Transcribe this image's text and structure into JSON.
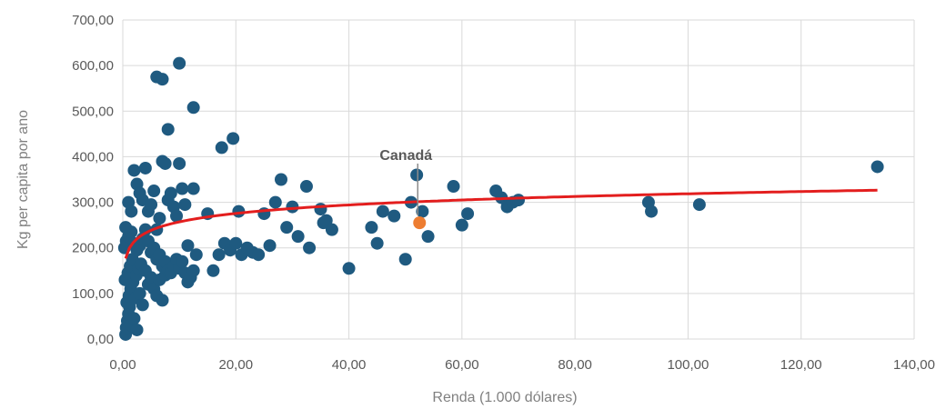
{
  "chart_data": {
    "type": "scatter",
    "title": "",
    "xlabel": "Renda (1.000 dólares)",
    "ylabel": "Kg per capita por ano",
    "xlim": [
      0,
      140
    ],
    "ylim": [
      0,
      700
    ],
    "grid": true,
    "legend": "none",
    "x_ticks": [
      "0,00",
      "20,00",
      "40,00",
      "60,00",
      "80,00",
      "100,00",
      "120,00",
      "140,00"
    ],
    "y_ticks": [
      "0,00",
      "100,00",
      "200,00",
      "300,00",
      "400,00",
      "500,00",
      "600,00",
      "700,00"
    ],
    "colors": {
      "points": "#1f5a80",
      "highlight": "#ed7d31",
      "trend": "#e31e1e",
      "annotation": "#595959"
    },
    "series": [
      {
        "points": [
          [
            0.5,
            10
          ],
          [
            0.6,
            25
          ],
          [
            0.8,
            40
          ],
          [
            1.0,
            55
          ],
          [
            1.2,
            70
          ],
          [
            1.5,
            30
          ],
          [
            2.0,
            45
          ],
          [
            2.5,
            20
          ],
          [
            0.7,
            80
          ],
          [
            1.1,
            95
          ],
          [
            1.4,
            110
          ],
          [
            1.8,
            125
          ],
          [
            2.2,
            90
          ],
          [
            3.0,
            100
          ],
          [
            3.5,
            75
          ],
          [
            0.4,
            130
          ],
          [
            0.9,
            145
          ],
          [
            1.3,
            160
          ],
          [
            1.7,
            175
          ],
          [
            2.4,
            140
          ],
          [
            2.8,
            155
          ],
          [
            3.2,
            165
          ],
          [
            4.0,
            150
          ],
          [
            4.5,
            120
          ],
          [
            5.0,
            135
          ],
          [
            5.5,
            110
          ],
          [
            6.0,
            95
          ],
          [
            6.5,
            130
          ],
          [
            7.0,
            85
          ],
          [
            7.5,
            140
          ],
          [
            0.3,
            200
          ],
          [
            0.6,
            215
          ],
          [
            1.0,
            225
          ],
          [
            1.5,
            235
          ],
          [
            2.0,
            210
          ],
          [
            2.5,
            195
          ],
          [
            3.0,
            205
          ],
          [
            3.5,
            220
          ],
          [
            4.0,
            240
          ],
          [
            4.5,
            215
          ],
          [
            5.0,
            190
          ],
          [
            5.5,
            200
          ],
          [
            6.0,
            175
          ],
          [
            6.5,
            185
          ],
          [
            7.0,
            160
          ],
          [
            7.5,
            170
          ],
          [
            8.0,
            150
          ],
          [
            8.5,
            145
          ],
          [
            9.0,
            160
          ],
          [
            9.5,
            175
          ],
          [
            10.0,
            155
          ],
          [
            10.5,
            170
          ],
          [
            11.0,
            145
          ],
          [
            11.5,
            125
          ],
          [
            12.0,
            135
          ],
          [
            12.5,
            150
          ],
          [
            13.0,
            185
          ],
          [
            0.5,
            245
          ],
          [
            1.0,
            300
          ],
          [
            1.5,
            280
          ],
          [
            2.0,
            370
          ],
          [
            2.5,
            340
          ],
          [
            3.0,
            320
          ],
          [
            3.5,
            305
          ],
          [
            4.0,
            375
          ],
          [
            4.5,
            280
          ],
          [
            5.0,
            295
          ],
          [
            5.5,
            325
          ],
          [
            6.0,
            240
          ],
          [
            6.5,
            265
          ],
          [
            7.0,
            390
          ],
          [
            7.5,
            385
          ],
          [
            8.0,
            305
          ],
          [
            8.5,
            320
          ],
          [
            9.0,
            290
          ],
          [
            9.5,
            270
          ],
          [
            10.0,
            385
          ],
          [
            10.5,
            330
          ],
          [
            11.0,
            295
          ],
          [
            11.5,
            205
          ],
          [
            12.5,
            330
          ],
          [
            6.0,
            575
          ],
          [
            7.0,
            570
          ],
          [
            8.0,
            460
          ],
          [
            10.0,
            605
          ],
          [
            12.5,
            508
          ],
          [
            17.5,
            420
          ],
          [
            19.5,
            440
          ],
          [
            15.0,
            275
          ],
          [
            16.0,
            150
          ],
          [
            17.0,
            185
          ],
          [
            18.0,
            210
          ],
          [
            19.0,
            195
          ],
          [
            20.0,
            210
          ],
          [
            20.5,
            280
          ],
          [
            21.0,
            185
          ],
          [
            22.0,
            200
          ],
          [
            23.0,
            190
          ],
          [
            24.0,
            185
          ],
          [
            25.0,
            275
          ],
          [
            26.0,
            205
          ],
          [
            27.0,
            300
          ],
          [
            28.0,
            350
          ],
          [
            29.0,
            245
          ],
          [
            30.0,
            290
          ],
          [
            31.0,
            225
          ],
          [
            32.5,
            335
          ],
          [
            33.0,
            200
          ],
          [
            35.0,
            285
          ],
          [
            35.5,
            255
          ],
          [
            36.0,
            260
          ],
          [
            37.0,
            240
          ],
          [
            40.0,
            155
          ],
          [
            44.0,
            245
          ],
          [
            45.0,
            210
          ],
          [
            46.0,
            280
          ],
          [
            48.0,
            270
          ],
          [
            50.0,
            175
          ],
          [
            51.0,
            300
          ],
          [
            52.0,
            360
          ],
          [
            53.0,
            280
          ],
          [
            54.0,
            225
          ],
          [
            58.5,
            335
          ],
          [
            60.0,
            250
          ],
          [
            61.0,
            275
          ],
          [
            66.0,
            325
          ],
          [
            67.0,
            310
          ],
          [
            68.0,
            290
          ],
          [
            69.0,
            300
          ],
          [
            70.0,
            305
          ],
          [
            93.0,
            300
          ],
          [
            93.5,
            280
          ],
          [
            102.0,
            295
          ],
          [
            133.5,
            378
          ]
        ]
      }
    ],
    "highlight": {
      "x": 52.5,
      "y": 255
    },
    "annotation": {
      "text": "Canadá",
      "x": 52.5,
      "y": 255
    },
    "trendline": {
      "type": "logarithmic",
      "a": 195.3,
      "b": 26.8,
      "x_start": 0.5,
      "x_end": 133.5
    }
  }
}
